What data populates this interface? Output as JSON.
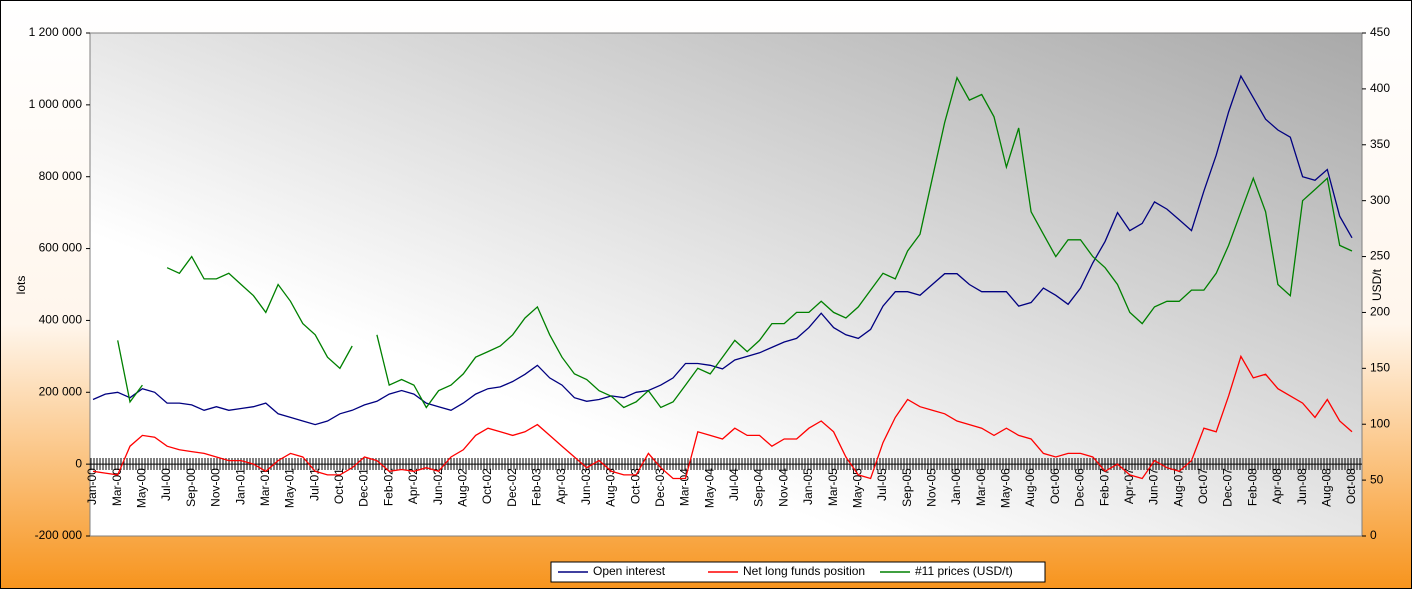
{
  "chart_data": {
    "type": "line",
    "categories": [
      "Jan-00",
      null,
      "Mar-00",
      null,
      "May-00",
      null,
      "Jul-00",
      null,
      "Sep-00",
      null,
      "Nov-00",
      null,
      "Jan-01",
      null,
      "Mar-01",
      null,
      "May-01",
      null,
      "Jul-01",
      null,
      "Oct-01",
      null,
      "Dec-01",
      null,
      "Feb-02",
      null,
      "Apr-02",
      null,
      "Jun-02",
      null,
      "Aug-02",
      null,
      "Oct-02",
      null,
      "Dec-02",
      null,
      "Feb-03",
      null,
      "Apr-03",
      null,
      "Jun-03",
      null,
      "Aug-03",
      null,
      "Oct-03",
      null,
      "Dec-03",
      null,
      "Mar-04",
      null,
      "May-04",
      null,
      "Jul-04",
      null,
      "Sep-04",
      null,
      "Nov-04",
      null,
      "Jan-05",
      null,
      "Mar-05",
      null,
      "May-05",
      null,
      "Jul-05",
      null,
      "Sep-05",
      null,
      "Nov-05",
      null,
      "Jan-06",
      null,
      "Mar-06",
      null,
      "May-06",
      null,
      "Aug-06",
      null,
      "Oct-06",
      null,
      "Dec-06",
      null,
      "Feb-07",
      null,
      "Apr-07",
      null,
      "Jun-07",
      null,
      "Aug-07",
      null,
      "Oct-07",
      null,
      "Dec-07",
      null,
      "Feb-08",
      null,
      "Apr-08",
      null,
      "Jun-08",
      null,
      "Aug-08",
      null,
      "Oct-08"
    ],
    "series": [
      {
        "name": "Open interest",
        "color": "#000080",
        "values": [
          180000,
          195000,
          200000,
          185000,
          210000,
          200000,
          170000,
          170000,
          165000,
          150000,
          160000,
          150000,
          155000,
          160000,
          170000,
          140000,
          130000,
          120000,
          110000,
          120000,
          140000,
          150000,
          165000,
          175000,
          195000,
          205000,
          195000,
          170000,
          160000,
          150000,
          170000,
          195000,
          210000,
          215000,
          230000,
          250000,
          275000,
          240000,
          220000,
          185000,
          175000,
          180000,
          190000,
          185000,
          200000,
          205000,
          220000,
          240000,
          280000,
          280000,
          275000,
          265000,
          290000,
          300000,
          310000,
          325000,
          340000,
          350000,
          380000,
          420000,
          380000,
          360000,
          350000,
          375000,
          440000,
          480000,
          480000,
          470000,
          500000,
          530000,
          530000,
          500000,
          480000,
          480000,
          480000,
          440000,
          450000,
          490000,
          470000,
          445000,
          490000,
          560000,
          620000,
          700000,
          650000,
          670000,
          730000,
          710000,
          680000,
          650000,
          760000,
          860000,
          980000,
          1080000,
          1020000,
          960000,
          930000,
          910000,
          800000,
          790000,
          820000,
          690000,
          630000
        ]
      },
      {
        "name": "Net long funds position",
        "color": "#ff0000",
        "values": [
          -20000,
          -25000,
          -30000,
          50000,
          80000,
          75000,
          50000,
          40000,
          35000,
          30000,
          20000,
          10000,
          10000,
          0,
          -20000,
          10000,
          30000,
          20000,
          -20000,
          -30000,
          -30000,
          -10000,
          20000,
          10000,
          -20000,
          -15000,
          -20000,
          -10000,
          -20000,
          20000,
          40000,
          80000,
          100000,
          90000,
          80000,
          90000,
          110000,
          80000,
          50000,
          20000,
          -10000,
          10000,
          -20000,
          -30000,
          -30000,
          30000,
          -10000,
          -40000,
          -40000,
          90000,
          80000,
          70000,
          100000,
          80000,
          80000,
          50000,
          70000,
          70000,
          100000,
          120000,
          90000,
          20000,
          -30000,
          -40000,
          60000,
          130000,
          180000,
          160000,
          150000,
          140000,
          120000,
          110000,
          100000,
          80000,
          100000,
          80000,
          70000,
          30000,
          20000,
          30000,
          30000,
          20000,
          -20000,
          0,
          -30000,
          -40000,
          10000,
          -10000,
          -20000,
          10000,
          100000,
          90000,
          190000,
          300000,
          240000,
          250000,
          210000,
          190000,
          170000,
          130000,
          180000,
          120000,
          90000
        ]
      },
      {
        "name": "#11 prices (USD/t)",
        "color": "#008000",
        "axis": "y2",
        "values": [
          null,
          null,
          175,
          120,
          135,
          null,
          240,
          235,
          250,
          230,
          230,
          235,
          225,
          215,
          200,
          225,
          210,
          190,
          180,
          160,
          150,
          170,
          null,
          180,
          135,
          140,
          135,
          115,
          130,
          135,
          145,
          160,
          165,
          170,
          180,
          195,
          205,
          180,
          160,
          145,
          140,
          130,
          125,
          115,
          120,
          130,
          115,
          120,
          135,
          150,
          145,
          160,
          175,
          165,
          175,
          190,
          190,
          200,
          200,
          210,
          200,
          195,
          205,
          220,
          235,
          230,
          255,
          270,
          320,
          370,
          410,
          390,
          395,
          375,
          330,
          365,
          290,
          270,
          250,
          265,
          265,
          250,
          240,
          225,
          200,
          190,
          205,
          210,
          210,
          220,
          220,
          235,
          260,
          290,
          320,
          290,
          225,
          215,
          300,
          310,
          320,
          260,
          255
        ]
      }
    ],
    "y_label": "lots",
    "y2_label": "USD/t",
    "ylim": [
      -200000,
      1200000
    ],
    "yticks": [
      {
        "value": -200000,
        "label": "-200 000"
      },
      0,
      {
        "value": 200000,
        "label": "200 000"
      },
      {
        "value": 400000,
        "label": "400 000"
      },
      {
        "value": 600000,
        "label": "600 000"
      },
      {
        "value": 800000,
        "label": "800 000"
      },
      {
        "value": 1000000,
        "label": "1 000 000"
      },
      {
        "value": 1200000,
        "label": "1 200 000"
      }
    ],
    "y2lim": [
      0,
      450
    ],
    "y2ticks": [
      0,
      50,
      100,
      150,
      200,
      250,
      300,
      350,
      400,
      450
    ],
    "legend": "bottom"
  }
}
